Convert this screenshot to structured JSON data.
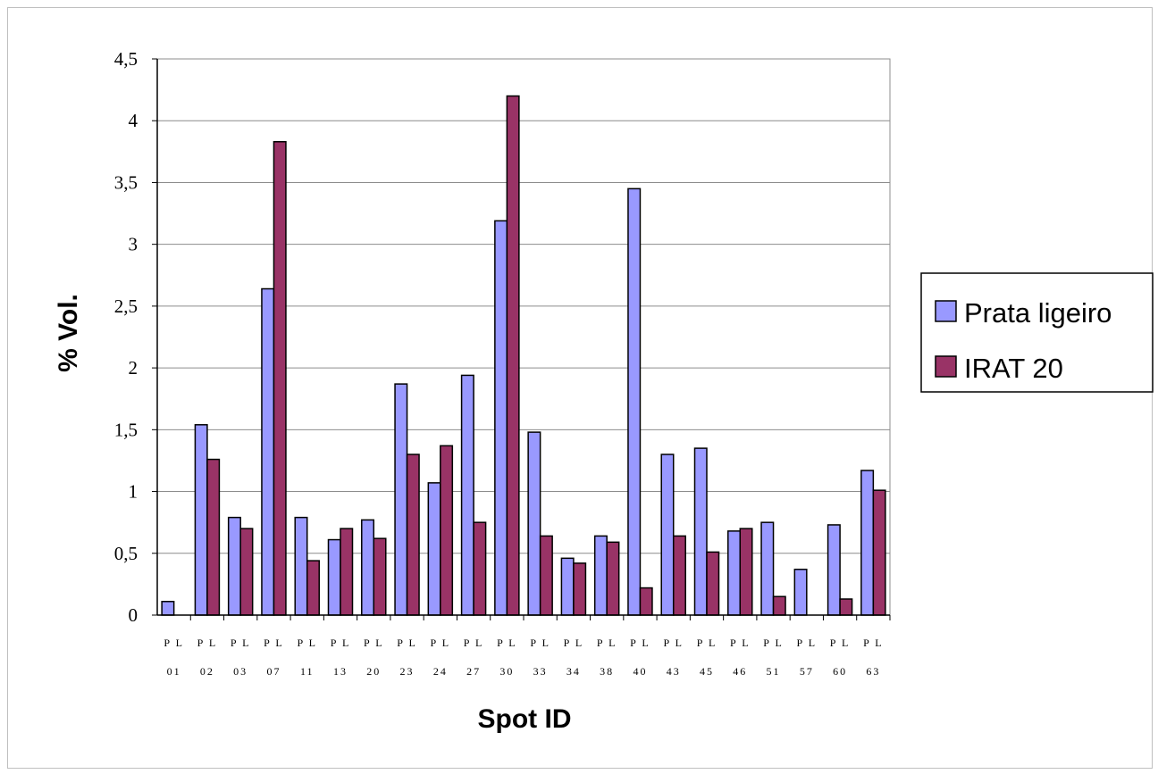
{
  "chart_data": {
    "type": "bar",
    "title": "",
    "xlabel": "Spot ID",
    "ylabel": "% Vol.",
    "ylim": [
      0,
      4.5
    ],
    "yticks": [
      "0",
      "0,5",
      "1",
      "1,5",
      "2",
      "2,5",
      "3",
      "3,5",
      "4",
      "4,5"
    ],
    "grid": true,
    "legend_position": "right",
    "categories": [
      {
        "line1": "P L",
        "line2": "01"
      },
      {
        "line1": "P L",
        "line2": "02"
      },
      {
        "line1": "P L",
        "line2": "03"
      },
      {
        "line1": "P L",
        "line2": "07"
      },
      {
        "line1": "P L",
        "line2": "11"
      },
      {
        "line1": "P L",
        "line2": "13"
      },
      {
        "line1": "P L",
        "line2": "20"
      },
      {
        "line1": "P L",
        "line2": "23"
      },
      {
        "line1": "P L",
        "line2": "24"
      },
      {
        "line1": "P L",
        "line2": "27"
      },
      {
        "line1": "P L",
        "line2": "30"
      },
      {
        "line1": "P L",
        "line2": "33"
      },
      {
        "line1": "P L",
        "line2": "34"
      },
      {
        "line1": "P L",
        "line2": "38"
      },
      {
        "line1": "P L",
        "line2": "40"
      },
      {
        "line1": "P L",
        "line2": "43"
      },
      {
        "line1": "P L",
        "line2": "45"
      },
      {
        "line1": "P L",
        "line2": "46"
      },
      {
        "line1": "P L",
        "line2": "51"
      },
      {
        "line1": "P L",
        "line2": "57"
      },
      {
        "line1": "P L",
        "line2": "60"
      },
      {
        "line1": "P L",
        "line2": "63"
      }
    ],
    "series": [
      {
        "name": "Prata ligeiro",
        "color": "#9999ff",
        "values": [
          0.11,
          1.54,
          0.79,
          2.64,
          0.79,
          0.61,
          0.77,
          1.87,
          1.07,
          1.94,
          3.19,
          1.48,
          0.46,
          0.64,
          3.45,
          1.3,
          1.35,
          0.68,
          0.75,
          0.37,
          0.73,
          1.17
        ]
      },
      {
        "name": "IRAT 20",
        "color": "#993366",
        "values": [
          0,
          1.26,
          0.7,
          3.83,
          0.44,
          0.7,
          0.62,
          1.3,
          1.37,
          0.75,
          4.2,
          0.64,
          0.42,
          0.59,
          0.22,
          0.64,
          0.51,
          0.7,
          0.15,
          0,
          0.13,
          1.01
        ]
      }
    ]
  }
}
